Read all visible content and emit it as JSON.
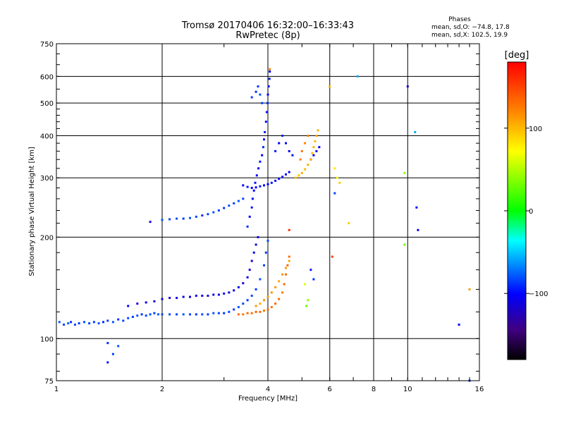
{
  "chart_data": {
    "type": "scatter",
    "title_line1": "Tromsø 20170406 16:32:00–16:33:43",
    "title_line2": "RwPretec (8p)",
    "stats": {
      "heading": "Phases",
      "line_o": "mean, sd,O: −74.8, 17.8",
      "line_x": "mean, sd,X: 102.5, 19.9"
    },
    "xlabel": "Frequency [MHz]",
    "ylabel": "Stationary phase Virtual Height [km]",
    "x_scale": "log",
    "y_scale": "log",
    "xlim": [
      1,
      16
    ],
    "ylim": [
      75,
      750
    ],
    "x_ticks": [
      {
        "value": 1,
        "label": "1"
      },
      {
        "value": 2,
        "label": "2"
      },
      {
        "value": 4,
        "label": "4"
      },
      {
        "value": 6,
        "label": "6"
      },
      {
        "value": 8,
        "label": "8"
      },
      {
        "value": 10,
        "label": "10"
      },
      {
        "value": 16,
        "label": "16"
      }
    ],
    "y_ticks": [
      {
        "value": 75,
        "label": "75"
      },
      {
        "value": 100,
        "label": "100"
      },
      {
        "value": 200,
        "label": "200"
      },
      {
        "value": 300,
        "label": "300"
      },
      {
        "value": 400,
        "label": "400"
      },
      {
        "value": 500,
        "label": "500"
      },
      {
        "value": 600,
        "label": "600"
      },
      {
        "value": 750,
        "label": "750"
      }
    ],
    "grid_x": [
      1,
      2,
      4,
      6,
      8,
      10,
      16
    ],
    "grid_y": [
      100,
      200,
      300,
      400,
      500,
      600
    ],
    "grid": true,
    "colorbar": {
      "unit_label": "[deg]",
      "range": [
        -180,
        180
      ],
      "ticks": [
        {
          "value": 100,
          "label": "100"
        },
        {
          "value": 0,
          "label": "0"
        },
        {
          "value": -100,
          "label": "−100"
        }
      ]
    },
    "series": [
      {
        "points": [
          [
            1.02,
            112,
            -80
          ],
          [
            1.05,
            110,
            -85
          ],
          [
            1.08,
            111,
            -78
          ],
          [
            1.1,
            112,
            -90
          ],
          [
            1.13,
            110,
            -82
          ],
          [
            1.16,
            111,
            -88
          ],
          [
            1.2,
            112,
            -80
          ],
          [
            1.24,
            111,
            -84
          ],
          [
            1.28,
            112,
            -86
          ],
          [
            1.32,
            111,
            -80
          ],
          [
            1.36,
            112,
            -90
          ],
          [
            1.4,
            113,
            -85
          ],
          [
            1.45,
            112,
            -80
          ],
          [
            1.5,
            114,
            -88
          ],
          [
            1.55,
            113,
            -84
          ],
          [
            1.6,
            115,
            -82
          ],
          [
            1.65,
            116,
            -86
          ],
          [
            1.7,
            117,
            -80
          ],
          [
            1.75,
            118,
            -88
          ],
          [
            1.8,
            117,
            -84
          ],
          [
            1.85,
            118,
            -82
          ],
          [
            1.9,
            119,
            -86
          ],
          [
            1.95,
            118,
            -80
          ],
          [
            2.0,
            118,
            -84
          ],
          [
            2.1,
            118,
            -82
          ],
          [
            2.2,
            118,
            -86
          ],
          [
            2.3,
            118,
            -80
          ],
          [
            2.4,
            118,
            -84
          ],
          [
            2.5,
            118,
            -88
          ],
          [
            2.6,
            118,
            -82
          ],
          [
            2.7,
            118,
            -86
          ],
          [
            2.8,
            119,
            -80
          ],
          [
            2.9,
            119,
            -84
          ],
          [
            3.0,
            119,
            -88
          ],
          [
            3.1,
            120,
            -82
          ],
          [
            3.2,
            122,
            -86
          ],
          [
            3.3,
            124,
            -80
          ],
          [
            3.4,
            127,
            -84
          ],
          [
            3.5,
            130,
            -88
          ],
          [
            3.6,
            134,
            -82
          ],
          [
            3.7,
            140,
            -86
          ],
          [
            3.8,
            150,
            -80
          ],
          [
            3.9,
            165,
            -84
          ],
          [
            3.95,
            180,
            -88
          ],
          [
            4.0,
            195,
            -82
          ],
          [
            1.6,
            125,
            -100
          ],
          [
            1.7,
            127,
            -110
          ],
          [
            1.8,
            128,
            -105
          ],
          [
            1.9,
            129,
            -112
          ],
          [
            2.0,
            131,
            -108
          ],
          [
            2.1,
            132,
            -115
          ],
          [
            2.2,
            132,
            -110
          ],
          [
            2.3,
            133,
            -106
          ],
          [
            2.4,
            133,
            -112
          ],
          [
            2.5,
            134,
            -108
          ],
          [
            2.6,
            134,
            -114
          ],
          [
            2.7,
            134,
            -110
          ],
          [
            2.8,
            135,
            -106
          ],
          [
            2.9,
            135,
            -112
          ],
          [
            3.0,
            136,
            -108
          ],
          [
            3.1,
            137,
            -114
          ],
          [
            3.2,
            139,
            -110
          ],
          [
            3.3,
            142,
            -106
          ],
          [
            3.4,
            146,
            -112
          ],
          [
            3.5,
            152,
            -108
          ],
          [
            3.55,
            160,
            -114
          ],
          [
            3.6,
            170,
            -110
          ],
          [
            3.65,
            180,
            -106
          ],
          [
            3.7,
            190,
            -112
          ],
          [
            3.75,
            200,
            -108
          ],
          [
            2.0,
            225,
            -80
          ],
          [
            2.1,
            226,
            -85
          ],
          [
            2.2,
            227,
            -82
          ],
          [
            2.3,
            227,
            -88
          ],
          [
            2.4,
            228,
            -80
          ],
          [
            2.5,
            230,
            -84
          ],
          [
            2.6,
            232,
            -90
          ],
          [
            2.7,
            234,
            -86
          ],
          [
            2.8,
            237,
            -80
          ],
          [
            2.9,
            240,
            -84
          ],
          [
            3.0,
            244,
            -88
          ],
          [
            3.1,
            248,
            -82
          ],
          [
            3.2,
            252,
            -86
          ],
          [
            3.3,
            256,
            -80
          ],
          [
            3.4,
            260,
            -84
          ],
          [
            3.5,
            215,
            -90
          ],
          [
            3.55,
            230,
            -100
          ],
          [
            3.6,
            245,
            -95
          ],
          [
            3.62,
            260,
            -105
          ],
          [
            3.65,
            275,
            -100
          ],
          [
            3.68,
            290,
            -95
          ],
          [
            3.72,
            305,
            -100
          ],
          [
            3.76,
            320,
            -105
          ],
          [
            3.8,
            335,
            -95
          ],
          [
            3.85,
            350,
            -100
          ],
          [
            3.88,
            370,
            -92
          ],
          [
            3.9,
            390,
            -98
          ],
          [
            3.92,
            410,
            -94
          ],
          [
            3.95,
            440,
            -100
          ],
          [
            3.97,
            470,
            -96
          ],
          [
            3.99,
            500,
            -92
          ],
          [
            4.0,
            530,
            -98
          ],
          [
            4.02,
            560,
            -104
          ],
          [
            4.04,
            590,
            -96
          ],
          [
            4.05,
            620,
            -100
          ],
          [
            3.4,
            285,
            -100
          ],
          [
            3.5,
            282,
            -95
          ],
          [
            3.6,
            280,
            -105
          ],
          [
            3.7,
            281,
            -100
          ],
          [
            3.8,
            283,
            -95
          ],
          [
            3.9,
            285,
            -105
          ],
          [
            4.0,
            287,
            -100
          ],
          [
            4.1,
            290,
            -95
          ],
          [
            4.2,
            294,
            -105
          ],
          [
            4.3,
            298,
            -100
          ],
          [
            4.4,
            302,
            -95
          ],
          [
            4.5,
            307,
            -105
          ],
          [
            4.6,
            312,
            -100
          ],
          [
            3.6,
            520,
            -85
          ],
          [
            3.7,
            540,
            -90
          ],
          [
            3.75,
            560,
            -88
          ],
          [
            3.8,
            530,
            -82
          ],
          [
            3.85,
            500,
            -86
          ],
          [
            4.2,
            360,
            -95
          ],
          [
            4.3,
            380,
            -100
          ],
          [
            4.4,
            400,
            -92
          ],
          [
            4.5,
            380,
            -98
          ],
          [
            4.6,
            360,
            -104
          ],
          [
            4.7,
            350,
            -96
          ],
          [
            5.3,
            340,
            -105
          ],
          [
            5.4,
            350,
            -100
          ],
          [
            5.5,
            360,
            -110
          ],
          [
            5.6,
            370,
            -105
          ],
          [
            1.4,
            85,
            -95
          ],
          [
            1.45,
            90,
            -85
          ],
          [
            1.5,
            95,
            -80
          ],
          [
            1.85,
            222,
            -110
          ],
          [
            6.2,
            270,
            -85
          ],
          [
            7.2,
            600,
            -60
          ],
          [
            10.0,
            560,
            -120
          ],
          [
            10.5,
            410,
            -60
          ],
          [
            10.6,
            245,
            -100
          ],
          [
            10.7,
            210,
            -110
          ],
          [
            14,
            110,
            -100
          ],
          [
            15,
            75,
            -90
          ],
          [
            5.3,
            160,
            -95
          ],
          [
            5.4,
            150,
            -90
          ]
        ]
      },
      {
        "points": [
          [
            3.3,
            118,
            130
          ],
          [
            3.4,
            118,
            125
          ],
          [
            3.5,
            119,
            132
          ],
          [
            3.6,
            119,
            128
          ],
          [
            3.7,
            120,
            135
          ],
          [
            3.8,
            120,
            130
          ],
          [
            3.9,
            121,
            126
          ],
          [
            4.0,
            122,
            132
          ],
          [
            4.1,
            124,
            128
          ],
          [
            4.2,
            127,
            134
          ],
          [
            4.3,
            131,
            130
          ],
          [
            4.4,
            137,
            126
          ],
          [
            4.45,
            145,
            132
          ],
          [
            4.5,
            155,
            128
          ],
          [
            4.55,
            165,
            134
          ],
          [
            4.6,
            175,
            130
          ],
          [
            3.7,
            125,
            110
          ],
          [
            3.8,
            127,
            105
          ],
          [
            3.9,
            130,
            112
          ],
          [
            4.0,
            133,
            108
          ],
          [
            4.1,
            137,
            114
          ],
          [
            4.2,
            142,
            110
          ],
          [
            4.3,
            148,
            106
          ],
          [
            4.4,
            155,
            112
          ],
          [
            4.5,
            162,
            108
          ],
          [
            4.6,
            170,
            104
          ],
          [
            4.8,
            300,
            100
          ],
          [
            4.9,
            305,
            95
          ],
          [
            5.0,
            310,
            102
          ],
          [
            5.1,
            318,
            98
          ],
          [
            5.2,
            328,
            104
          ],
          [
            5.3,
            340,
            100
          ],
          [
            5.35,
            355,
            96
          ],
          [
            5.4,
            370,
            102
          ],
          [
            5.45,
            385,
            98
          ],
          [
            5.5,
            400,
            104
          ],
          [
            5.55,
            415,
            100
          ],
          [
            4.95,
            340,
            120
          ],
          [
            5.0,
            360,
            125
          ],
          [
            5.1,
            380,
            118
          ],
          [
            5.2,
            400,
            122
          ],
          [
            4.05,
            630,
            120
          ],
          [
            6.0,
            560,
            100
          ],
          [
            6.2,
            320,
            80
          ],
          [
            6.3,
            300,
            70
          ],
          [
            6.4,
            290,
            90
          ],
          [
            6.8,
            220,
            90
          ],
          [
            9.8,
            310,
            40
          ],
          [
            9.8,
            190,
            30
          ],
          [
            5.1,
            145,
            60
          ],
          [
            5.2,
            130,
            40
          ],
          [
            5.15,
            125,
            30
          ],
          [
            6.1,
            175,
            150
          ],
          [
            15,
            140,
            110
          ],
          [
            1.4,
            97,
            -90
          ],
          [
            4.6,
            210,
            160
          ]
        ]
      }
    ]
  }
}
